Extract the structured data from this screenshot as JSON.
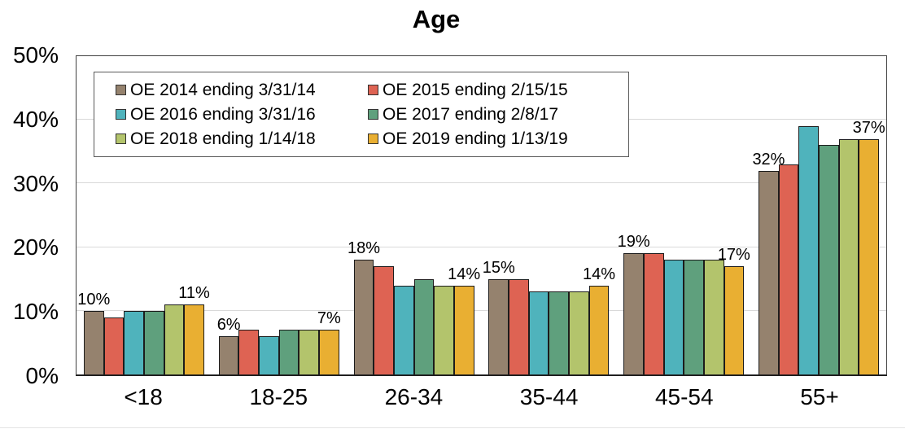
{
  "chart_data": {
    "type": "bar",
    "title": "Age",
    "categories": [
      "<18",
      "18-25",
      "26-34",
      "35-44",
      "45-54",
      "55+"
    ],
    "series": [
      {
        "name": "OE 2014 ending 3/31/14",
        "color": "#95826E",
        "values": [
          10,
          6,
          18,
          15,
          19,
          32
        ]
      },
      {
        "name": "OE 2015 ending 2/15/15",
        "color": "#DE6353",
        "values": [
          9,
          7,
          17,
          15,
          19,
          33
        ]
      },
      {
        "name": "OE 2016 ending 3/31/16",
        "color": "#4FB3BC",
        "values": [
          10,
          6,
          14,
          13,
          18,
          39
        ]
      },
      {
        "name": "OE 2017 ending 2/8/17",
        "color": "#5FA07D",
        "values": [
          10,
          7,
          15,
          13,
          18,
          36
        ]
      },
      {
        "name": "OE 2018 ending 1/14/18",
        "color": "#B3C46C",
        "values": [
          11,
          7,
          14,
          13,
          18,
          37
        ]
      },
      {
        "name": "OE 2019 ending 1/13/19",
        "color": "#E9AF32",
        "values": [
          11,
          7,
          14,
          14,
          17,
          37
        ]
      }
    ],
    "ylim": [
      0,
      50
    ],
    "ytick_labels": [
      "50%",
      "40%",
      "30%",
      "20%",
      "10%",
      "0%"
    ],
    "grid": "horizontal-light-gray",
    "legend_position": "inside-top-left",
    "labeled_series_indexes": [
      0,
      5
    ],
    "data_labels": {
      "<18": {
        "first": "10%",
        "last": "11%"
      },
      "18-25": {
        "first": "6%",
        "last": "7%"
      },
      "26-34": {
        "first": "18%",
        "last": "14%"
      },
      "35-44": {
        "first": "15%",
        "last": "14%"
      },
      "45-54": {
        "first": "19%",
        "last": "17%"
      },
      "55+": {
        "first": "32%",
        "last": "37%"
      }
    },
    "colors": {
      "grid": "#D9D9D9",
      "bar_border": "#1C1C1C",
      "plot_border": "#404040",
      "text": "#000000",
      "background": "#FFFFFF"
    }
  }
}
